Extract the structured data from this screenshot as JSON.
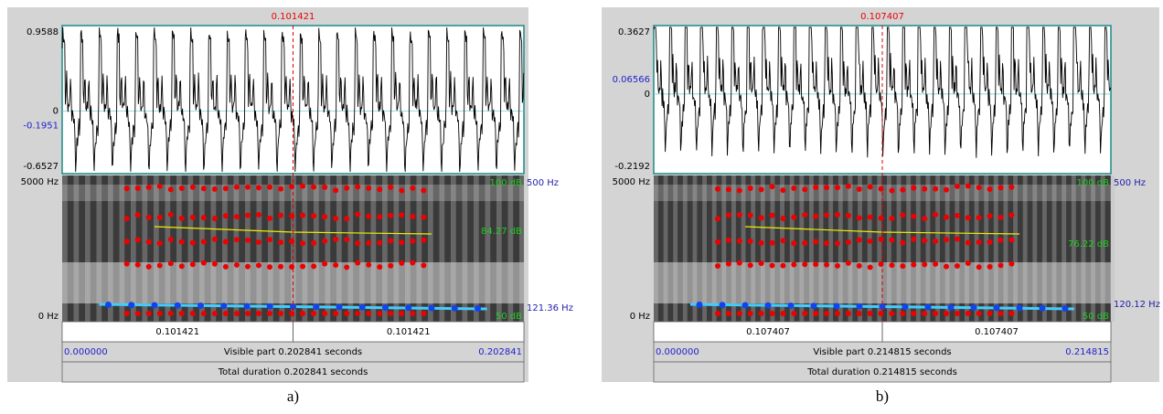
{
  "panels": [
    {
      "caption": "a)",
      "cursor": "0.101421",
      "wave_max": "0.9588",
      "wave_zero": "0",
      "wave_cursor": "-0.1951",
      "wave_min": "-0.6527",
      "freq_top": "5000 Hz",
      "freq_bottom": "0 Hz",
      "db_top": "100 dB",
      "pitch_top": "500 Hz",
      "db_cursor": "84.27 dB",
      "pitch_value": "121.36 Hz",
      "db_bottom": "50 dB",
      "left_duration": "0.101421",
      "right_duration": "0.101421",
      "visible_start": "0.000000",
      "visible_part": "Visible part 0.202841 seconds",
      "visible_end": "0.202841",
      "total_duration": "Total duration 0.202841 seconds"
    },
    {
      "caption": "b)",
      "cursor": "0.107407",
      "wave_max": "0.3627",
      "wave_zero": "0",
      "wave_cursor": "0.06566",
      "wave_min": "-0.2192",
      "freq_top": "5000 Hz",
      "freq_bottom": "0 Hz",
      "db_top": "100 dB",
      "pitch_top": "500 Hz",
      "db_cursor": "76.22 dB",
      "pitch_value": "120.12 Hz",
      "db_bottom": "50 dB",
      "left_duration": "0.107407",
      "right_duration": "0.107407",
      "visible_start": "0.000000",
      "visible_part": "Visible part 0.214815 seconds",
      "visible_end": "0.214815",
      "total_duration": "Total duration 0.214815 seconds"
    }
  ]
}
